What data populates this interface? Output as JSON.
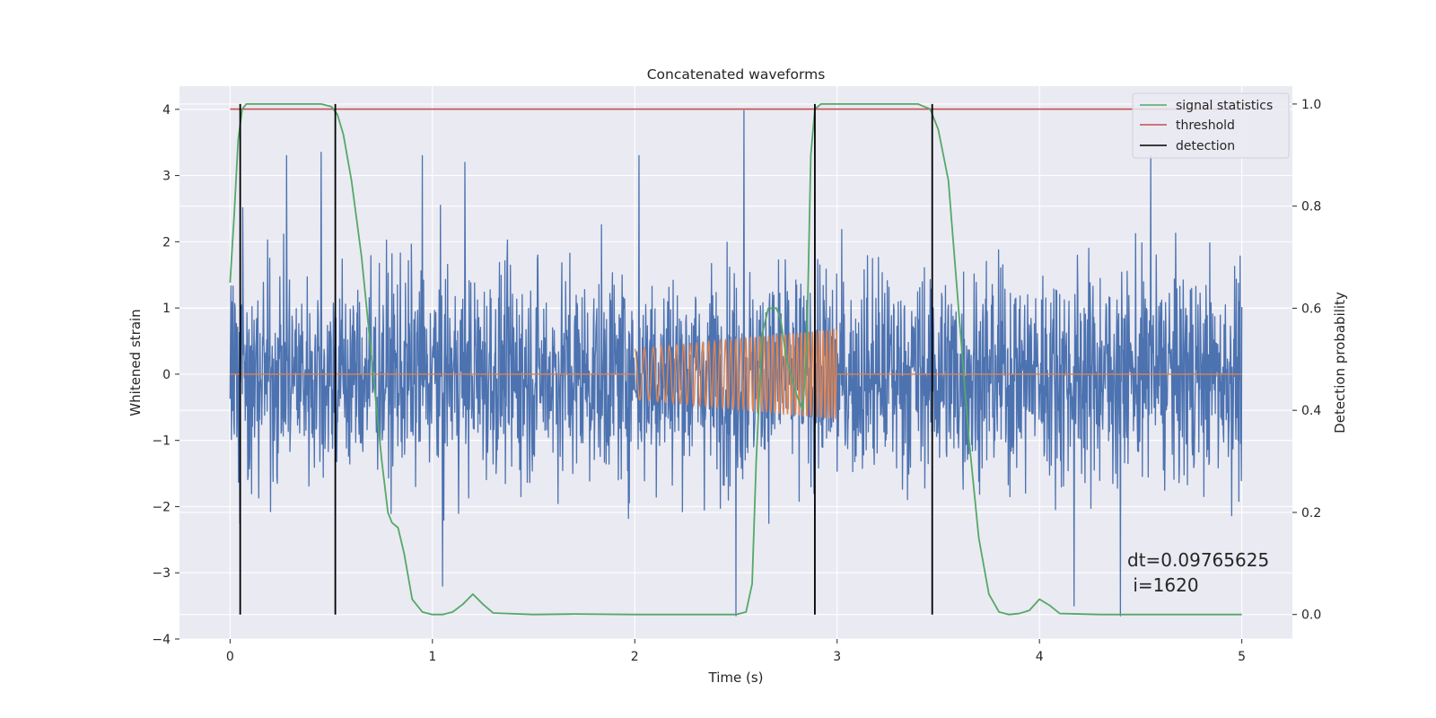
{
  "chart_data": {
    "type": "line",
    "title": "Concatenated waveforms",
    "xlabel": "Time (s)",
    "ylabel": "Whitened strain",
    "y2label": "Detection probability",
    "xlim": [
      -0.25,
      5.25
    ],
    "ylim": [
      -4,
      4.35
    ],
    "y2lim": [
      -0.048,
      1.035
    ],
    "xticks": [
      0,
      1,
      2,
      3,
      4,
      5
    ],
    "yticks": [
      -4,
      -3,
      -2,
      -1,
      0,
      1,
      2,
      3,
      4
    ],
    "y2ticks": [
      0.0,
      0.2,
      0.4,
      0.6,
      0.8,
      1.0
    ],
    "xtick_labels": [
      "0",
      "1",
      "2",
      "3",
      "4",
      "5"
    ],
    "ytick_labels": [
      "−4",
      "−3",
      "−2",
      "−1",
      "0",
      "1",
      "2",
      "3",
      "4"
    ],
    "y2tick_labels": [
      "0.0",
      "0.2",
      "0.4",
      "0.6",
      "0.8",
      "1.0"
    ],
    "grid": true,
    "legend_position": "top-right",
    "noise": {
      "x_start": 0.0,
      "x_end": 5.0,
      "color": "#4c72b0",
      "envelope_mean": 1.2,
      "peaks": [
        {
          "x": 0.28,
          "y": 3.3
        },
        {
          "x": 0.45,
          "y": 3.35
        },
        {
          "x": 0.95,
          "y": 3.3
        },
        {
          "x": 1.16,
          "y": 3.2
        },
        {
          "x": 2.02,
          "y": 3.3
        },
        {
          "x": 2.54,
          "y": 3.98
        },
        {
          "x": 2.5,
          "y": -3.65
        },
        {
          "x": 4.4,
          "y": -3.65
        },
        {
          "x": 1.05,
          "y": -3.2
        },
        {
          "x": 4.17,
          "y": -3.5
        },
        {
          "x": 4.55,
          "y": 3.3
        }
      ]
    },
    "series": [
      {
        "name": "",
        "color": "#dd8452",
        "axis": "left",
        "segments": [
          {
            "kind": "flat",
            "x_start": 0.0,
            "x_end": 2.0,
            "y": 0.0
          },
          {
            "kind": "chirp",
            "x_start": 2.0,
            "x_end": 3.0,
            "amp_start": 0.38,
            "amp_end": 0.68,
            "freq_start": 20,
            "freq_end": 60
          },
          {
            "kind": "flat",
            "x_start": 3.0,
            "x_end": 5.0,
            "y": 0.0
          }
        ]
      },
      {
        "name": "signal statistics",
        "color": "#55a868",
        "axis": "right",
        "x": [
          0.0,
          0.02,
          0.04,
          0.06,
          0.08,
          0.1,
          0.15,
          0.3,
          0.45,
          0.5,
          0.53,
          0.56,
          0.6,
          0.65,
          0.7,
          0.75,
          0.78,
          0.8,
          0.83,
          0.86,
          0.9,
          0.95,
          1.0,
          1.05,
          1.1,
          1.15,
          1.2,
          1.25,
          1.3,
          1.5,
          1.7,
          2.0,
          2.3,
          2.5,
          2.55,
          2.58,
          2.6,
          2.63,
          2.66,
          2.7,
          2.72,
          2.75,
          2.8,
          2.83,
          2.85,
          2.87,
          2.89,
          2.92,
          3.0,
          3.4,
          3.46,
          3.5,
          3.55,
          3.6,
          3.65,
          3.7,
          3.75,
          3.8,
          3.85,
          3.9,
          3.95,
          4.0,
          4.05,
          4.1,
          4.3,
          4.6,
          5.0
        ],
        "y": [
          0.65,
          0.78,
          0.93,
          0.99,
          1.0,
          1.0,
          1.0,
          1.0,
          1.0,
          0.995,
          0.98,
          0.94,
          0.85,
          0.7,
          0.5,
          0.3,
          0.2,
          0.18,
          0.17,
          0.12,
          0.03,
          0.005,
          0.0,
          0.0,
          0.005,
          0.02,
          0.04,
          0.02,
          0.003,
          0.0,
          0.001,
          0.0,
          0.0,
          0.0,
          0.005,
          0.06,
          0.3,
          0.55,
          0.6,
          0.6,
          0.58,
          0.5,
          0.43,
          0.4,
          0.52,
          0.9,
          0.99,
          1.0,
          1.0,
          1.0,
          0.99,
          0.95,
          0.85,
          0.6,
          0.35,
          0.15,
          0.04,
          0.005,
          0.0,
          0.002,
          0.008,
          0.03,
          0.018,
          0.002,
          0.0,
          0.0,
          0.0
        ]
      },
      {
        "name": "threshold",
        "color": "#c44e52",
        "axis": "right",
        "x": [
          0.0,
          5.0
        ],
        "y": [
          0.99,
          0.99
        ]
      },
      {
        "name": "detection",
        "color": "#000000",
        "axis": "right",
        "kind": "vlines",
        "x": [
          0.05,
          0.52,
          2.89,
          3.47
        ],
        "y_range": [
          0.0,
          1.0
        ]
      }
    ],
    "annotation": {
      "line1": "dt=0.09765625",
      "line2": " i=1620"
    }
  }
}
